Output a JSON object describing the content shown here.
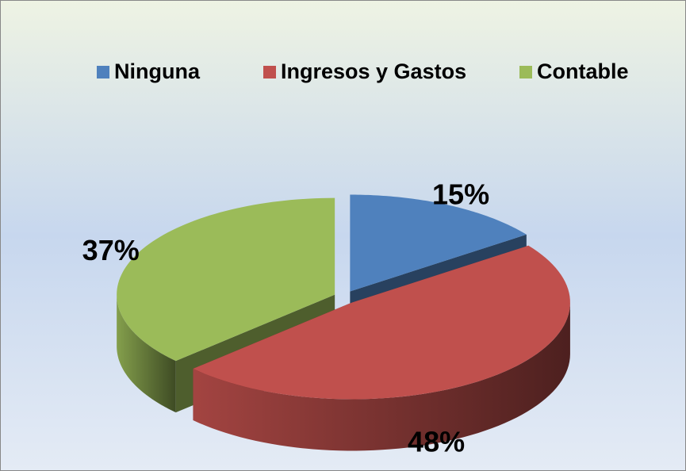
{
  "chart_data": {
    "type": "pie3d",
    "categories": [
      "Ninguna",
      "Ingresos y Gastos",
      "Contable"
    ],
    "values": [
      15,
      48,
      37
    ],
    "value_labels": [
      "15%",
      "48%",
      "37%"
    ],
    "colors": [
      "#4f81bd",
      "#c0504d",
      "#9bbb59"
    ],
    "legend": "top"
  }
}
